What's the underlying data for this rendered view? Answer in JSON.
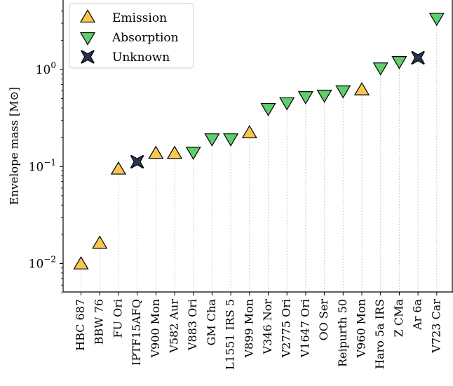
{
  "chart_data": {
    "type": "scatter",
    "ylabel": "Envelope mass [M⊙]",
    "yscale": "log",
    "ylim": [
      0.005,
      4.5
    ],
    "y_ticks": [
      {
        "value": 0.01,
        "base": "10",
        "exp": "−2"
      },
      {
        "value": 0.1,
        "base": "10",
        "exp": "−1"
      },
      {
        "value": 1,
        "base": "10",
        "exp": "0"
      }
    ],
    "legend": {
      "placement": "top-left",
      "entries": [
        {
          "key": "emission",
          "label": "Emission"
        },
        {
          "key": "absorption",
          "label": "Absorption"
        },
        {
          "key": "unknown",
          "label": "Unknown"
        }
      ]
    },
    "colors": {
      "emission": "#f9c74f",
      "absorption": "#5fcf6e",
      "unknown": "#2c3454",
      "guide": "#bbbbbb"
    },
    "categories": [
      "HBC 687",
      "BBW 76",
      "FU Ori",
      "IPTF15AFQ",
      "V900 Mon",
      "V582 Aur",
      "V883 Ori",
      "GM Cha",
      "L1551 IRS 5",
      "V899 Mon",
      "V346 Nor",
      "V2775 Ori",
      "V1647 Ori",
      "OO Ser",
      "Reipurth 50",
      "V960 Mon",
      "Haro 5a IRS",
      "Z CMa",
      "Ar 6a",
      "V723 Car"
    ],
    "values": [
      0.0098,
      0.016,
      0.093,
      0.112,
      0.135,
      0.135,
      0.142,
      0.195,
      0.195,
      0.22,
      0.4,
      0.46,
      0.53,
      0.55,
      0.61,
      0.61,
      1.05,
      1.22,
      1.32,
      3.4
    ],
    "kinds": [
      "emission",
      "emission",
      "emission",
      "unknown",
      "emission",
      "emission",
      "absorption",
      "absorption",
      "absorption",
      "emission",
      "absorption",
      "absorption",
      "absorption",
      "absorption",
      "absorption",
      "emission",
      "absorption",
      "absorption",
      "unknown",
      "absorption"
    ]
  }
}
